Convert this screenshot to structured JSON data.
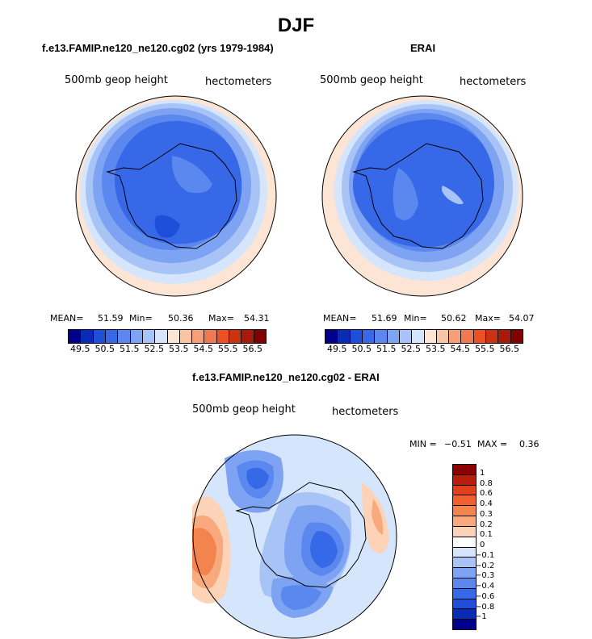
{
  "title": "DJF",
  "panels": [
    {
      "title": "f.e13.FAMIP.ne120_ne120.cg02 (yrs 1979-1984)",
      "variable": "500mb geop height",
      "units": "hectometers",
      "mean_label": "MEAN=",
      "mean": "51.59",
      "min_label": "Min=",
      "min": "50.36",
      "max_label": "Max=",
      "max": "54.31"
    },
    {
      "title": "ERAI",
      "variable": "500mb geop height",
      "units": "hectometers",
      "mean_label": "MEAN=",
      "mean": "51.69",
      "min_label": "Min=",
      "min": "50.62",
      "max_label": "Max=",
      "max": "54.07"
    }
  ],
  "field_colorbar": {
    "colors": [
      "#00008b",
      "#0a2bb5",
      "#1d4fdb",
      "#3668e8",
      "#5a88ee",
      "#7ea3f2",
      "#a8c3f6",
      "#d5e5fb",
      "#fde5d5",
      "#f9c5a5",
      "#f6a078",
      "#f2784f",
      "#ee5022",
      "#cd3210",
      "#a8190a",
      "#800000"
    ],
    "labels": [
      "49.5",
      "50.5",
      "51.5",
      "52.5",
      "53.5",
      "54.5",
      "55.5",
      "56.5"
    ]
  },
  "diff": {
    "title": "f.e13.FAMIP.ne120_ne120.cg02 - ERAI",
    "variable": "500mb geop height",
    "units": "hectometers",
    "min_label": "MIN =",
    "min": "−0.51",
    "max_label": "MAX =",
    "max": "0.36",
    "colors": [
      "#8b0000",
      "#b91e0a",
      "#e2401a",
      "#f06030",
      "#f4844d",
      "#f8aa7e",
      "#fcd3b6",
      "#ffffff",
      "#d5e5fb",
      "#a8c3f6",
      "#7ea3f2",
      "#5a88ee",
      "#3668e8",
      "#1d4fdb",
      "#0a2bb5",
      "#00008b"
    ],
    "labels": [
      "1",
      "0.8",
      "0.6",
      "0.4",
      "0.3",
      "0.2",
      "0.1",
      "0",
      "−0.1",
      "−0.2",
      "−0.3",
      "−0.4",
      "−0.6",
      "−0.8",
      "−1"
    ]
  }
}
